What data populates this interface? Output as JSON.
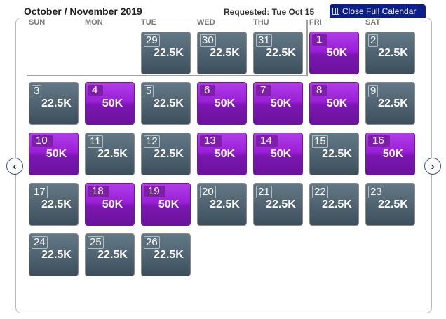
{
  "header": {
    "title": "October / November 2019",
    "requested": "Requested: Tue Oct 15",
    "close_button": "Close Full Calendar"
  },
  "weekdays": [
    "SUN",
    "MON",
    "TUE",
    "WED",
    "THU",
    "FRI",
    "SAT"
  ],
  "colors": {
    "low_fare": "#4f6472",
    "high_fare": "#9a1fd6",
    "button": "#0a1e8c"
  },
  "weeks": [
    [
      null,
      null,
      {
        "day": "29",
        "price": "22.5K",
        "tier": "grey"
      },
      {
        "day": "30",
        "price": "22.5K",
        "tier": "grey"
      },
      {
        "day": "31",
        "price": "22.5K",
        "tier": "grey"
      },
      {
        "day": "1",
        "price": "50K",
        "tier": "purple"
      },
      {
        "day": "2",
        "price": "22.5K",
        "tier": "grey"
      }
    ],
    [
      {
        "day": "3",
        "price": "22.5K",
        "tier": "grey"
      },
      {
        "day": "4",
        "price": "50K",
        "tier": "purple"
      },
      {
        "day": "5",
        "price": "22.5K",
        "tier": "grey"
      },
      {
        "day": "6",
        "price": "50K",
        "tier": "purple"
      },
      {
        "day": "7",
        "price": "50K",
        "tier": "purple"
      },
      {
        "day": "8",
        "price": "50K",
        "tier": "purple"
      },
      {
        "day": "9",
        "price": "22.5K",
        "tier": "grey"
      }
    ],
    [
      {
        "day": "10",
        "price": "50K",
        "tier": "purple"
      },
      {
        "day": "11",
        "price": "22.5K",
        "tier": "grey"
      },
      {
        "day": "12",
        "price": "22.5K",
        "tier": "grey"
      },
      {
        "day": "13",
        "price": "50K",
        "tier": "purple"
      },
      {
        "day": "14",
        "price": "50K",
        "tier": "purple"
      },
      {
        "day": "15",
        "price": "22.5K",
        "tier": "grey"
      },
      {
        "day": "16",
        "price": "50K",
        "tier": "purple"
      }
    ],
    [
      {
        "day": "17",
        "price": "22.5K",
        "tier": "grey"
      },
      {
        "day": "18",
        "price": "50K",
        "tier": "purple"
      },
      {
        "day": "19",
        "price": "50K",
        "tier": "purple"
      },
      {
        "day": "20",
        "price": "22.5K",
        "tier": "grey"
      },
      {
        "day": "21",
        "price": "22.5K",
        "tier": "grey"
      },
      {
        "day": "22",
        "price": "22.5K",
        "tier": "grey"
      },
      {
        "day": "23",
        "price": "22.5K",
        "tier": "grey"
      }
    ],
    [
      {
        "day": "24",
        "price": "22.5K",
        "tier": "grey"
      },
      {
        "day": "25",
        "price": "22.5K",
        "tier": "grey"
      },
      {
        "day": "26",
        "price": "22.5K",
        "tier": "grey"
      },
      null,
      null,
      null,
      null
    ]
  ],
  "nav": {
    "prev_icon": "chevron-left-icon",
    "next_icon": "chevron-right-icon",
    "prev_glyph": "‹",
    "next_glyph": "›"
  }
}
